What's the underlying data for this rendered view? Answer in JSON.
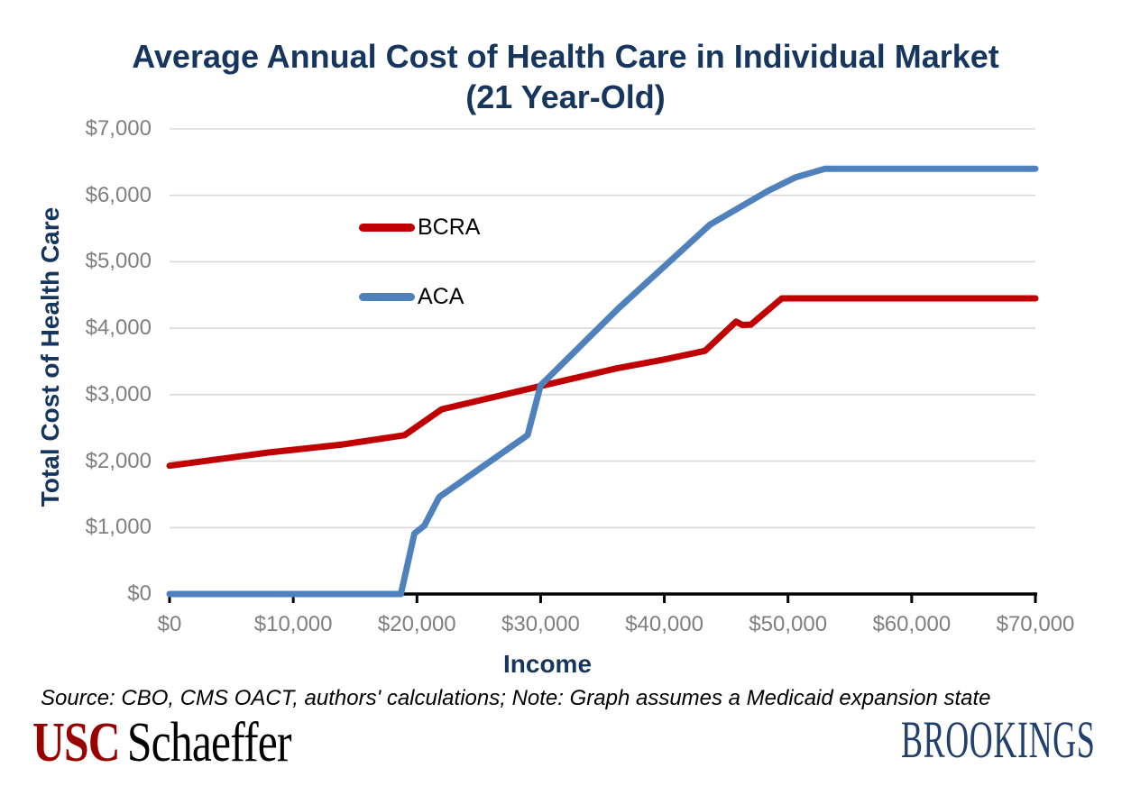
{
  "title": {
    "line1": "Average Annual Cost of Health Care in Individual Market",
    "line2": "(21 Year-Old)"
  },
  "chart_data": {
    "type": "line",
    "title": "Average Annual Cost of Health Care in Individual Market (21 Year-Old)",
    "xlabel": "Income",
    "ylabel": "Total Cost of Health Care",
    "xlim": [
      0,
      70000
    ],
    "ylim": [
      0,
      7000
    ],
    "grid": "horizontal",
    "gridline_color": "#D9D9D9",
    "axis_line_color": "#000000",
    "tick_label_color": "#7F7F7F",
    "legend_position": "inside-upper-left",
    "x_ticks": [
      0,
      10000,
      20000,
      30000,
      40000,
      50000,
      60000,
      70000
    ],
    "x_tick_labels": [
      "$0",
      "$10,000",
      "$20,000",
      "$30,000",
      "$40,000",
      "$50,000",
      "$60,000",
      "$70,000"
    ],
    "y_ticks": [
      0,
      1000,
      2000,
      3000,
      4000,
      5000,
      6000,
      7000
    ],
    "y_tick_labels": [
      "$0",
      "$1,000",
      "$2,000",
      "$3,000",
      "$4,000",
      "$5,000",
      "$6,000",
      "$7,000"
    ],
    "series": [
      {
        "name": "BCRA",
        "color": "#C00000",
        "points": [
          [
            0,
            1930
          ],
          [
            8000,
            2130
          ],
          [
            14000,
            2250
          ],
          [
            19000,
            2390
          ],
          [
            22000,
            2780
          ],
          [
            30000,
            3130
          ],
          [
            36000,
            3390
          ],
          [
            40000,
            3530
          ],
          [
            43300,
            3660
          ],
          [
            45800,
            4100
          ],
          [
            46300,
            4050
          ],
          [
            47000,
            4055
          ],
          [
            49500,
            4450
          ],
          [
            70000,
            4450
          ]
        ]
      },
      {
        "name": "ACA",
        "color": "#4F81BD",
        "points": [
          [
            0,
            0
          ],
          [
            18700,
            0
          ],
          [
            19800,
            910
          ],
          [
            20600,
            1030
          ],
          [
            21800,
            1460
          ],
          [
            28950,
            2390
          ],
          [
            30000,
            3140
          ],
          [
            36300,
            4300
          ],
          [
            43700,
            5560
          ],
          [
            48400,
            6070
          ],
          [
            50600,
            6270
          ],
          [
            53000,
            6400
          ],
          [
            70000,
            6400
          ]
        ]
      }
    ]
  },
  "source_note": "Source: CBO, CMS OACT, authors' calculations; Note: Graph assumes a Medicaid expansion state",
  "footer": {
    "usc_logo_part1": "USC",
    "usc_logo_part2": "Schaeffer",
    "brookings_logo": "BROOKINGS"
  },
  "colors": {
    "title_navy": "#17365D",
    "bcra_red": "#C00000",
    "aca_blue": "#4F81BD",
    "tick_gray": "#7F7F7F",
    "gridline_gray": "#D9D9D9",
    "usc_red": "#990000",
    "brookings_navy": "#21406E"
  }
}
